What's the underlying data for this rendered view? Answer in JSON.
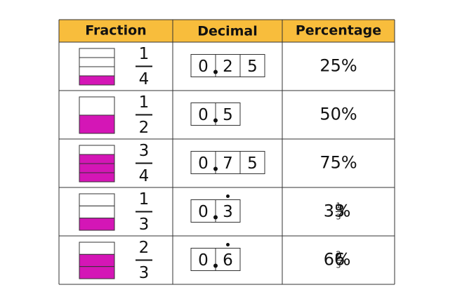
{
  "table": {
    "header": [
      "Fraction",
      "Decimal",
      "Percentage"
    ],
    "rows": [
      {
        "fraction": {
          "numerator": "1",
          "denominator": "4"
        },
        "decimal": {
          "digits": [
            "0",
            "2",
            "5"
          ],
          "recurring": false
        },
        "percentage": {
          "text": "25%"
        }
      },
      {
        "fraction": {
          "numerator": "1",
          "denominator": "2"
        },
        "decimal": {
          "digits": [
            "0",
            "5"
          ],
          "recurring": false
        },
        "percentage": {
          "text": "50%"
        }
      },
      {
        "fraction": {
          "numerator": "3",
          "denominator": "4"
        },
        "decimal": {
          "digits": [
            "0",
            "7",
            "5"
          ],
          "recurring": false
        },
        "percentage": {
          "text": "75%"
        }
      },
      {
        "fraction": {
          "numerator": "1",
          "denominator": "3"
        },
        "decimal": {
          "digits": [
            "0",
            "3"
          ],
          "recurring": true
        },
        "percentage": {
          "whole": "33",
          "numerator": "1",
          "denominator": "3",
          "sign": "%"
        }
      },
      {
        "fraction": {
          "numerator": "2",
          "denominator": "3"
        },
        "decimal": {
          "digits": [
            "0",
            "6"
          ],
          "recurring": true
        },
        "percentage": {
          "whole": "66",
          "numerator": "2",
          "denominator": "3",
          "sign": "%"
        }
      }
    ]
  }
}
